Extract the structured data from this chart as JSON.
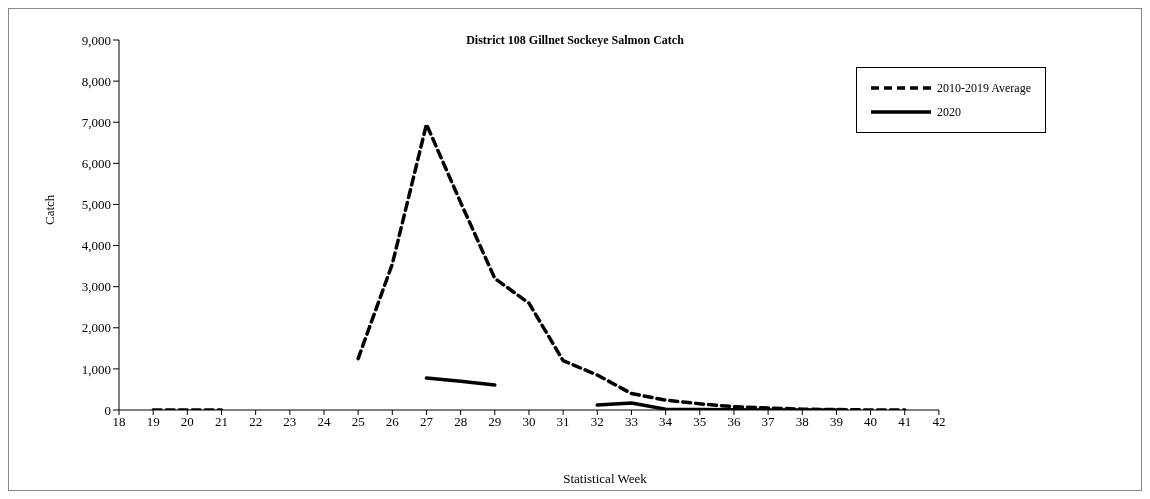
{
  "chart_data": {
    "type": "line",
    "title": "District 108 Gillnet Sockeye Salmon Catch",
    "xlabel": "Statistical Week",
    "ylabel": "Catch",
    "categories": [
      "18",
      "19",
      "20",
      "21",
      "22",
      "23",
      "24",
      "25",
      "26",
      "27",
      "28",
      "29",
      "30",
      "31",
      "32",
      "33",
      "34",
      "35",
      "36",
      "37",
      "38",
      "39",
      "40",
      "41",
      "42"
    ],
    "series": [
      {
        "name": "2010-2019 Average",
        "color": "#000000",
        "line_style": "dashed",
        "values": [
          null,
          0,
          0,
          0,
          null,
          null,
          null,
          1250,
          3550,
          6950,
          5050,
          3200,
          2600,
          1200,
          850,
          400,
          240,
          150,
          80,
          50,
          20,
          10,
          0,
          0,
          null
        ]
      },
      {
        "name": "2020",
        "color": "#000000",
        "line_style": "solid",
        "values": [
          null,
          null,
          null,
          null,
          null,
          null,
          null,
          null,
          null,
          780,
          700,
          610,
          null,
          null,
          120,
          170,
          20,
          10,
          5,
          0,
          0,
          0,
          null,
          null,
          null
        ]
      }
    ],
    "ylim": [
      0,
      9000
    ],
    "yticks": [
      0,
      {
        "value": 1000,
        "label": "1,000"
      },
      {
        "value": 2000,
        "label": "2,000"
      },
      {
        "value": 3000,
        "label": "3,000"
      },
      {
        "value": 4000,
        "label": "4,000"
      },
      {
        "value": 5000,
        "label": "5,000"
      },
      {
        "value": 6000,
        "label": "6,000"
      },
      {
        "value": 7000,
        "label": "7,000"
      },
      {
        "value": 8000,
        "label": "8,000"
      },
      {
        "value": 9000,
        "label": "9,000"
      }
    ],
    "grid": false,
    "legend": "top right",
    "marker": "none"
  }
}
